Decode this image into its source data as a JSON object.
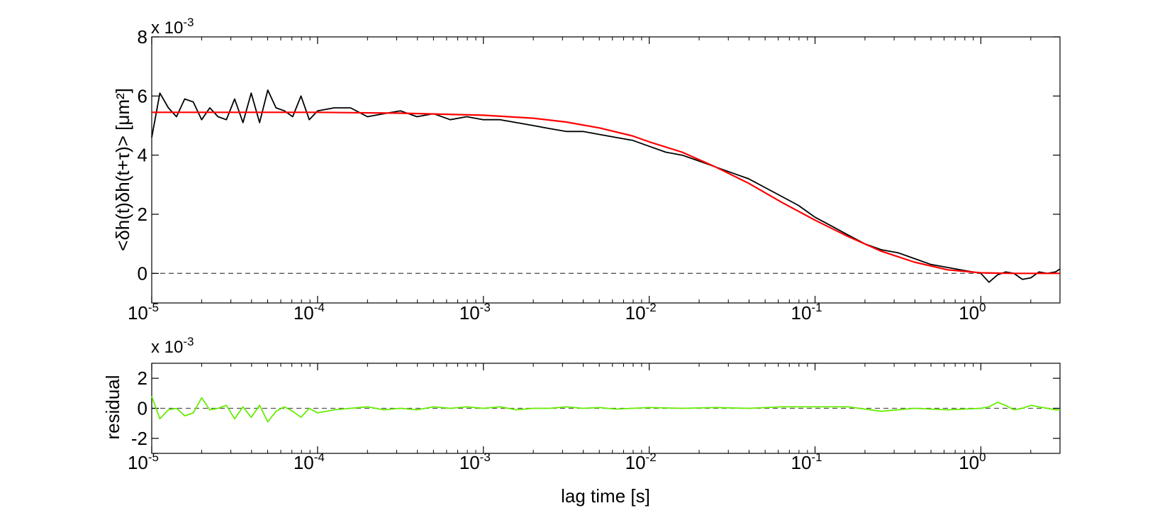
{
  "chart_data": [
    {
      "type": "line",
      "ylabel": "<δh(t)δh(t+τ)> [μm²]",
      "xlabel": "",
      "x_scale": "log",
      "xlim": [
        1e-05,
        3
      ],
      "ylim": [
        -1,
        8
      ],
      "y_scale_factor": "x 10",
      "y_scale_exponent": "-3",
      "yticks": [
        0,
        2,
        4,
        6,
        8
      ],
      "xticks": [
        1e-05,
        0.0001,
        0.001,
        0.01,
        0.1,
        1
      ],
      "xtick_base": "10",
      "xtick_exponents": [
        "-5",
        "-4",
        "-3",
        "-2",
        "-1",
        "0"
      ],
      "reference_line": 0,
      "grid": false,
      "legend": "none",
      "colors": {
        "data": "#000000",
        "fit": "#ff0000",
        "reference": "#555555"
      },
      "series": [
        {
          "x": [
            1e-05,
            1.12e-05,
            1.26e-05,
            1.41e-05,
            1.58e-05,
            1.78e-05,
            2e-05,
            2.24e-05,
            2.51e-05,
            2.82e-05,
            3.16e-05,
            3.55e-05,
            3.98e-05,
            4.47e-05,
            5.01e-05,
            5.62e-05,
            6.31e-05,
            7.08e-05,
            7.94e-05,
            8.91e-05,
            0.0001,
            0.000126,
            0.000158,
            0.0002,
            0.000251,
            0.000316,
            0.000398,
            0.000501,
            0.000631,
            0.000794,
            0.001,
            0.00126,
            0.00158,
            0.002,
            0.00251,
            0.00316,
            0.00398,
            0.00501,
            0.00631,
            0.00794,
            0.01,
            0.0126,
            0.0158,
            0.02,
            0.0251,
            0.0316,
            0.0398,
            0.0501,
            0.0631,
            0.0794,
            0.1,
            0.126,
            0.158,
            0.2,
            0.251,
            0.316,
            0.398,
            0.501,
            0.631,
            0.794,
            1.0,
            1.12,
            1.26,
            1.41,
            1.58,
            1.78,
            2.0,
            2.24,
            2.51,
            2.82,
            3.0
          ],
          "y": [
            4.6,
            6.1,
            5.6,
            5.3,
            5.9,
            5.8,
            5.2,
            5.6,
            5.3,
            5.2,
            5.9,
            5.1,
            6.1,
            5.1,
            6.2,
            5.6,
            5.5,
            5.3,
            6.0,
            5.2,
            5.5,
            5.6,
            5.6,
            5.3,
            5.4,
            5.5,
            5.3,
            5.4,
            5.2,
            5.3,
            5.2,
            5.2,
            5.1,
            5.0,
            4.9,
            4.8,
            4.8,
            4.7,
            4.6,
            4.5,
            4.3,
            4.1,
            4.0,
            3.8,
            3.6,
            3.4,
            3.2,
            2.9,
            2.6,
            2.3,
            1.9,
            1.6,
            1.3,
            1.0,
            0.8,
            0.7,
            0.5,
            0.3,
            0.2,
            0.1,
            0.0,
            -0.3,
            -0.05,
            0.05,
            0.0,
            -0.2,
            -0.15,
            0.05,
            0.0,
            0.05,
            0.15
          ],
          "color": "#000000"
        },
        {
          "x": [
            1e-05,
            0.0001,
            0.000316,
            0.001,
            0.002,
            0.00316,
            0.00501,
            0.00794,
            0.01,
            0.0158,
            0.0251,
            0.0398,
            0.0631,
            0.1,
            0.158,
            0.251,
            0.398,
            0.631,
            1.0,
            1.58,
            3.0
          ],
          "y": [
            5.45,
            5.45,
            5.42,
            5.35,
            5.25,
            5.12,
            4.92,
            4.65,
            4.45,
            4.1,
            3.6,
            3.05,
            2.4,
            1.8,
            1.25,
            0.75,
            0.38,
            0.12,
            0.02,
            0.0,
            0.0
          ],
          "color": "#ff0000"
        }
      ]
    },
    {
      "type": "line",
      "ylabel": "residual",
      "xlabel": "lag time [s]",
      "x_scale": "log",
      "xlim": [
        1e-05,
        3
      ],
      "ylim": [
        -3,
        3
      ],
      "y_scale_factor": "x 10",
      "y_scale_exponent": "-3",
      "yticks": [
        -2,
        0,
        2
      ],
      "xticks": [
        1e-05,
        0.0001,
        0.001,
        0.01,
        0.1,
        1
      ],
      "xtick_base": "10",
      "xtick_exponents": [
        "-5",
        "-4",
        "-3",
        "-2",
        "-1",
        "0"
      ],
      "reference_line": 0,
      "grid": false,
      "legend": "none",
      "colors": {
        "residual": "#66ee00",
        "reference": "#555555"
      },
      "series": [
        {
          "x": [
            1e-05,
            1.12e-05,
            1.26e-05,
            1.41e-05,
            1.58e-05,
            1.78e-05,
            2e-05,
            2.24e-05,
            2.51e-05,
            2.82e-05,
            3.16e-05,
            3.55e-05,
            3.98e-05,
            4.47e-05,
            5.01e-05,
            5.62e-05,
            6.31e-05,
            7.08e-05,
            7.94e-05,
            8.91e-05,
            0.0001,
            0.000126,
            0.000158,
            0.0002,
            0.000251,
            0.000316,
            0.000398,
            0.000501,
            0.000631,
            0.000794,
            0.001,
            0.00126,
            0.00158,
            0.002,
            0.00251,
            0.00316,
            0.00398,
            0.00501,
            0.00631,
            0.00794,
            0.01,
            0.0158,
            0.0251,
            0.0398,
            0.0631,
            0.1,
            0.158,
            0.251,
            0.398,
            0.631,
            1.0,
            1.12,
            1.26,
            1.41,
            1.58,
            1.78,
            2.0,
            2.24,
            2.51,
            2.82,
            3.0
          ],
          "y": [
            0.8,
            -0.7,
            -0.1,
            0.0,
            -0.5,
            -0.3,
            0.7,
            -0.1,
            0.0,
            0.2,
            -0.7,
            0.1,
            -0.6,
            0.2,
            -0.9,
            -0.2,
            0.1,
            -0.2,
            -0.6,
            0.0,
            -0.3,
            -0.1,
            0.0,
            0.1,
            -0.1,
            0.0,
            -0.1,
            0.1,
            0.0,
            0.1,
            0.0,
            0.1,
            -0.1,
            0.0,
            0.0,
            0.1,
            0.0,
            0.05,
            -0.05,
            0.0,
            0.05,
            0.0,
            0.05,
            0.0,
            0.1,
            0.1,
            0.1,
            -0.2,
            0.0,
            -0.1,
            0.0,
            0.1,
            0.4,
            0.2,
            -0.1,
            0.0,
            0.2,
            0.1,
            0.0,
            -0.1,
            -0.1
          ],
          "color": "#66ee00"
        }
      ]
    }
  ]
}
